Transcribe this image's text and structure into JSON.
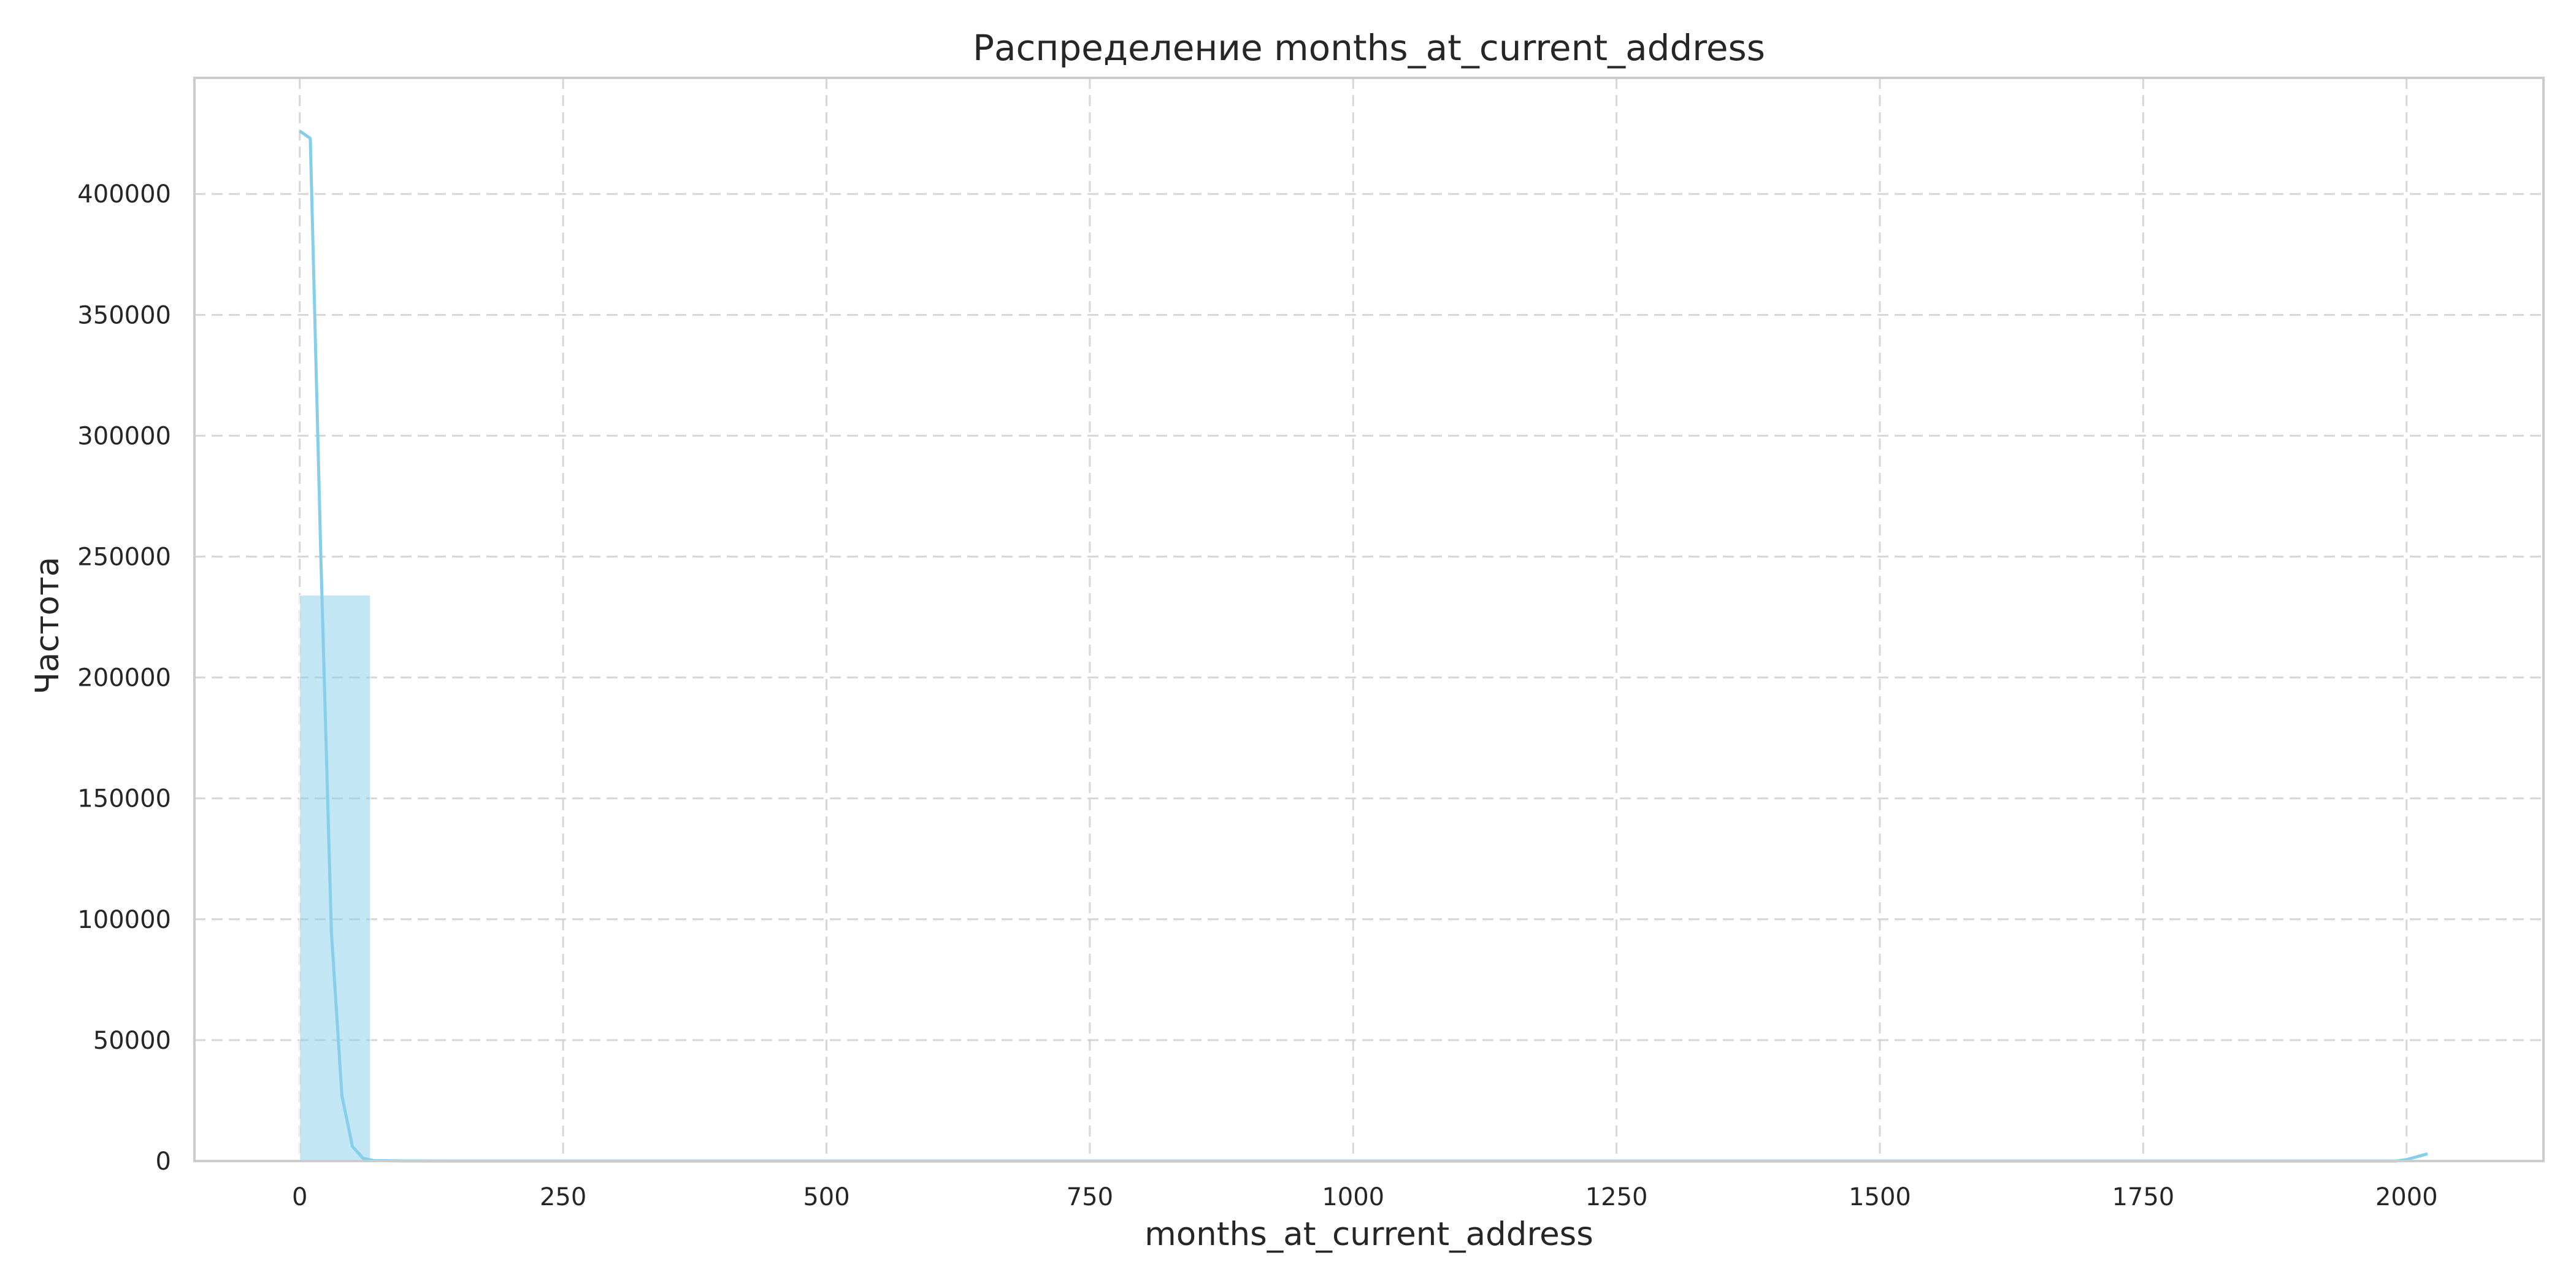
{
  "chart_data": {
    "type": "bar",
    "title": "Распределение months_at_current_address",
    "xlabel": "months_at_current_address",
    "ylabel": "Частота",
    "xlim": [
      -100,
      2130
    ],
    "ylim": [
      0,
      448000
    ],
    "grid": true,
    "x_ticks": [
      0,
      250,
      500,
      750,
      1000,
      1250,
      1500,
      1750,
      2000
    ],
    "y_ticks": [
      0,
      50000,
      100000,
      150000,
      200000,
      250000,
      300000,
      350000,
      400000
    ],
    "bin_width": 67,
    "bins": [
      {
        "x0": 0,
        "x1": 67,
        "count": 234000
      },
      {
        "x0": 67,
        "x1": 134,
        "count": 300
      },
      {
        "x0": 1943,
        "x1": 2010,
        "count": 0
      }
    ],
    "series": [
      {
        "kind": "kde",
        "x": [
          0,
          10,
          20,
          30,
          40,
          50,
          60,
          70,
          100,
          150,
          200,
          500,
          1000,
          1500,
          1990,
          2000,
          2010,
          2020
        ],
        "values": [
          426000,
          423000,
          250000,
          95000,
          27000,
          6000,
          1200,
          200,
          20,
          0,
          0,
          0,
          0,
          0,
          0,
          600,
          1800,
          3000
        ]
      }
    ],
    "colors": {
      "bar": "#87ceeb",
      "line": "#87ceeb",
      "grid": "#cccccc",
      "frame": "#cccccc",
      "text": "#262626"
    }
  }
}
